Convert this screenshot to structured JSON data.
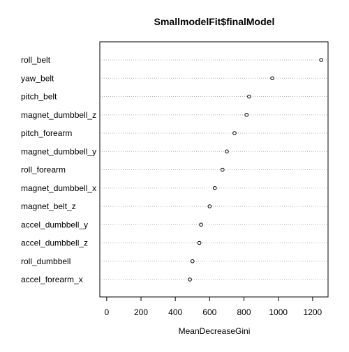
{
  "chart_data": {
    "type": "dotchart",
    "title": "SmallmodelFit$finalModel",
    "xlabel": "MeanDecreaseGini",
    "ylabel": "",
    "xlim": [
      -40,
      1290
    ],
    "xticks": [
      0,
      200,
      400,
      600,
      800,
      1000,
      1200
    ],
    "grid": "horizontal dotted",
    "categories": [
      "roll_belt",
      "yaw_belt",
      "pitch_belt",
      "magnet_dumbbell_z",
      "pitch_forearm",
      "magnet_dumbbell_y",
      "roll_forearm",
      "magnet_dumbbell_x",
      "magnet_belt_z",
      "accel_dumbbell_y",
      "accel_dumbbell_z",
      "roll_dumbbell",
      "accel_forearm_x"
    ],
    "values": [
      1250,
      965,
      830,
      815,
      745,
      700,
      675,
      630,
      600,
      550,
      540,
      500,
      485
    ]
  }
}
